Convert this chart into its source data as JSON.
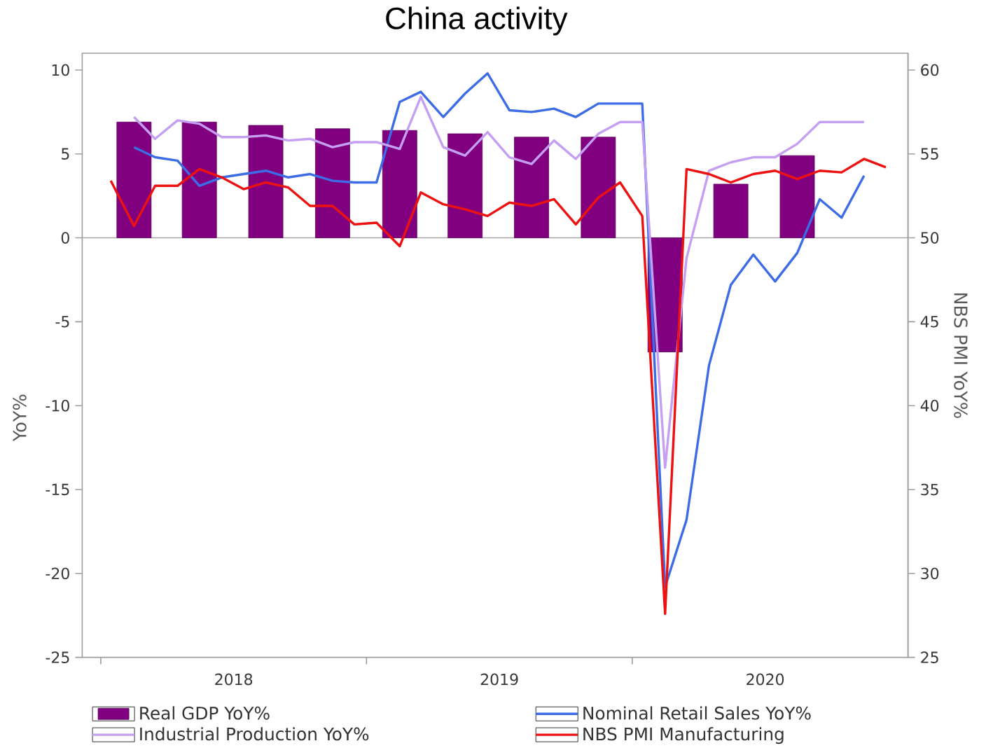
{
  "chart_data": {
    "type": "bar",
    "title": "China activity",
    "ylabel": "YoY%",
    "y2label": "NBS PMI YoY%",
    "xlim": [
      "2017-12-06",
      "2021-01-15"
    ],
    "xticks": [
      {
        "value": "2018-01-01",
        "label": null
      },
      {
        "value": "2018-07-01",
        "label": "2018"
      },
      {
        "value": "2019-01-01",
        "label": null
      },
      {
        "value": "2019-07-01",
        "label": "2019"
      },
      {
        "value": "2020-01-01",
        "label": null
      },
      {
        "value": "2020-07-01",
        "label": "2020"
      }
    ],
    "ylim": [
      -25,
      11
    ],
    "yticks": [
      -25,
      -20,
      -15,
      -10,
      -5,
      0,
      5,
      10
    ],
    "y2lim": [
      25,
      61
    ],
    "y2ticks": [
      25,
      30,
      35,
      40,
      45,
      50,
      55,
      60
    ],
    "legend": "bottom",
    "ref_lines": [
      {
        "axis": "y",
        "value": 0,
        "color": "#a6a6a6"
      }
    ],
    "series": [
      {
        "name": "Real GDP YoY%",
        "color": "#800080",
        "x": [
          "2018-02-15",
          "2018-05-15",
          "2018-08-15",
          "2018-11-15",
          "2019-02-15",
          "2019-05-15",
          "2019-08-15",
          "2019-11-15",
          "2020-02-15",
          "2020-05-15",
          "2020-08-15"
        ],
        "values": [
          6.9,
          6.9,
          6.7,
          6.5,
          6.4,
          6.2,
          6.0,
          6.0,
          -6.8,
          3.2,
          4.9
        ]
      },
      {
        "name": "Nominal Retail Sales YoY%",
        "type": "line",
        "color": "#3d6ce6",
        "x": [
          "2018-02-15",
          "2018-03-15",
          "2018-04-15",
          "2018-05-15",
          "2018-06-15",
          "2018-07-15",
          "2018-08-15",
          "2018-09-15",
          "2018-10-15",
          "2018-11-15",
          "2018-12-15",
          "2019-01-15",
          "2019-02-15",
          "2019-03-15",
          "2019-04-15",
          "2019-05-15",
          "2019-06-15",
          "2019-07-15",
          "2019-08-15",
          "2019-09-15",
          "2019-10-15",
          "2019-11-15",
          "2019-12-15",
          "2020-01-15",
          "2020-02-15",
          "2020-03-15",
          "2020-04-15",
          "2020-05-15",
          "2020-06-15",
          "2020-07-15",
          "2020-08-15",
          "2020-09-15",
          "2020-10-15",
          "2020-11-15"
        ],
        "values": [
          5.4,
          4.8,
          4.6,
          3.1,
          3.6,
          3.8,
          4.0,
          3.6,
          3.8,
          3.4,
          3.3,
          3.3,
          8.1,
          8.7,
          7.2,
          8.6,
          9.8,
          7.6,
          7.5,
          7.7,
          7.2,
          8.0,
          8.0,
          8.0,
          -20.8,
          -16.8,
          -7.6,
          -2.8,
          -1.0,
          -2.6,
          -0.9,
          2.3,
          1.2,
          3.7
        ]
      },
      {
        "name": "Industrial Production YoY%",
        "type": "line",
        "color": "#c5a0f2",
        "x": [
          "2018-02-15",
          "2018-03-15",
          "2018-04-15",
          "2018-05-15",
          "2018-06-15",
          "2018-07-15",
          "2018-08-15",
          "2018-09-15",
          "2018-10-15",
          "2018-11-15",
          "2018-12-15",
          "2019-01-15",
          "2019-02-15",
          "2019-03-15",
          "2019-04-15",
          "2019-05-15",
          "2019-06-15",
          "2019-07-15",
          "2019-08-15",
          "2019-09-15",
          "2019-10-15",
          "2019-11-15",
          "2019-12-15",
          "2020-01-15",
          "2020-02-15",
          "2020-03-15",
          "2020-04-15",
          "2020-05-15",
          "2020-06-15",
          "2020-07-15",
          "2020-08-15",
          "2020-09-15",
          "2020-10-15",
          "2020-11-15"
        ],
        "values": [
          7.2,
          5.9,
          7.0,
          6.8,
          6.0,
          6.0,
          6.1,
          5.8,
          5.9,
          5.4,
          5.7,
          5.7,
          5.3,
          8.4,
          5.4,
          4.9,
          6.3,
          4.8,
          4.4,
          5.8,
          4.7,
          6.2,
          6.9,
          6.9,
          -13.7,
          -1.2,
          4.0,
          4.5,
          4.8,
          4.8,
          5.6,
          6.9,
          6.9,
          6.9
        ]
      },
      {
        "name": "NBS PMI Manufacturing",
        "type": "line",
        "color": "#ee1111",
        "axis": "y2",
        "x": [
          "2018-01-15",
          "2018-02-15",
          "2018-03-15",
          "2018-04-15",
          "2018-05-15",
          "2018-06-15",
          "2018-07-15",
          "2018-08-15",
          "2018-09-15",
          "2018-10-15",
          "2018-11-15",
          "2018-12-15",
          "2019-01-15",
          "2019-02-15",
          "2019-03-15",
          "2019-04-15",
          "2019-05-15",
          "2019-06-15",
          "2019-07-15",
          "2019-08-15",
          "2019-09-15",
          "2019-10-15",
          "2019-11-15",
          "2019-12-15",
          "2020-01-15",
          "2020-02-15",
          "2020-03-15",
          "2020-04-15",
          "2020-05-15",
          "2020-06-15",
          "2020-07-15",
          "2020-08-15",
          "2020-09-15",
          "2020-10-15",
          "2020-11-15",
          "2020-12-15"
        ],
        "values": [
          53.4,
          50.7,
          53.1,
          53.1,
          54.1,
          53.6,
          52.9,
          53.3,
          53.0,
          51.9,
          51.9,
          50.8,
          50.9,
          49.5,
          52.7,
          52.0,
          51.7,
          51.3,
          52.1,
          51.9,
          52.3,
          50.8,
          52.4,
          53.3,
          51.3,
          27.6,
          54.1,
          53.8,
          53.3,
          53.8,
          54.0,
          53.5,
          54.0,
          53.9,
          54.7,
          54.2
        ]
      }
    ]
  }
}
